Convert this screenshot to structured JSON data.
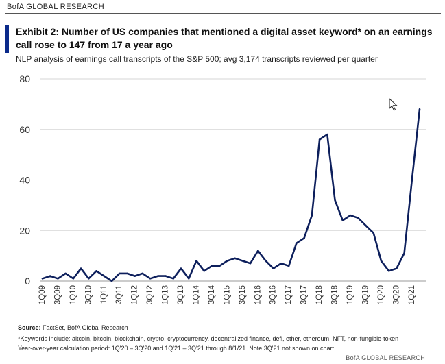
{
  "header": {
    "brand": "BofA GLOBAL RESEARCH",
    "title": "Exhibit 2: Number of US companies that mentioned a digital asset keyword* on an earnings call rose to 147 from 17 a year ago",
    "subtitle": "NLP analysis of earnings call transcripts of the S&P 500; avg 3,174 transcripts reviewed per quarter"
  },
  "chart_data": {
    "type": "line",
    "title": "Number of US companies that mentioned a digital asset keyword on an earnings call",
    "xlabel": "",
    "ylabel": "",
    "ylim": [
      0,
      80
    ],
    "yticks": [
      0,
      20,
      40,
      60,
      80
    ],
    "grid": "horizontal",
    "x": [
      "1Q09",
      "2Q09",
      "3Q09",
      "4Q09",
      "1Q10",
      "2Q10",
      "3Q10",
      "4Q10",
      "1Q11",
      "2Q11",
      "3Q11",
      "4Q11",
      "1Q12",
      "2Q12",
      "3Q12",
      "4Q12",
      "1Q13",
      "2Q13",
      "3Q13",
      "4Q13",
      "1Q14",
      "2Q14",
      "3Q14",
      "4Q14",
      "1Q15",
      "2Q15",
      "3Q15",
      "4Q15",
      "1Q16",
      "2Q16",
      "3Q16",
      "4Q16",
      "1Q17",
      "2Q17",
      "3Q17",
      "4Q17",
      "1Q18",
      "2Q18",
      "3Q18",
      "4Q18",
      "1Q19",
      "2Q19",
      "3Q19",
      "4Q19",
      "1Q20",
      "2Q20",
      "3Q20",
      "4Q20",
      "1Q21",
      "2Q21"
    ],
    "tick_labels": [
      "1Q09",
      "3Q09",
      "1Q10",
      "3Q10",
      "1Q11",
      "3Q11",
      "1Q12",
      "3Q12",
      "1Q13",
      "3Q13",
      "1Q14",
      "3Q14",
      "1Q15",
      "3Q15",
      "1Q16",
      "3Q16",
      "1Q17",
      "3Q17",
      "1Q18",
      "3Q18",
      "1Q19",
      "3Q19",
      "1Q20",
      "3Q20",
      "1Q21"
    ],
    "series": [
      {
        "name": "Companies mentioning digital asset keyword",
        "color": "#0d1f5c",
        "values": [
          1,
          2,
          1,
          3,
          1,
          5,
          1,
          4,
          2,
          0,
          3,
          3,
          2,
          3,
          1,
          2,
          2,
          1,
          5,
          1,
          8,
          4,
          6,
          6,
          8,
          9,
          8,
          7,
          12,
          8,
          5,
          7,
          6,
          15,
          17,
          26,
          56,
          58,
          32,
          24,
          26,
          25,
          22,
          19,
          8,
          4,
          5,
          11,
          40,
          68
        ]
      }
    ]
  },
  "footer": {
    "source_label": "Source:",
    "source_text": " FactSet, BofA Global Research",
    "keywords": "*Keywords include: altcoin, bitcoin, blockchain, crypto, cryptocurrency, decentralized finance, defi, ether, ethereum, NFT, non-fungible-token",
    "period_note": "Year-over-year calculation period: 1Q'20 – 3Q'20 and 1Q'21 – 3Q'21  through 8/1/21. Note 3Q'21  not shown on chart.",
    "brand": "BofA GLOBAL RESEARCH"
  }
}
